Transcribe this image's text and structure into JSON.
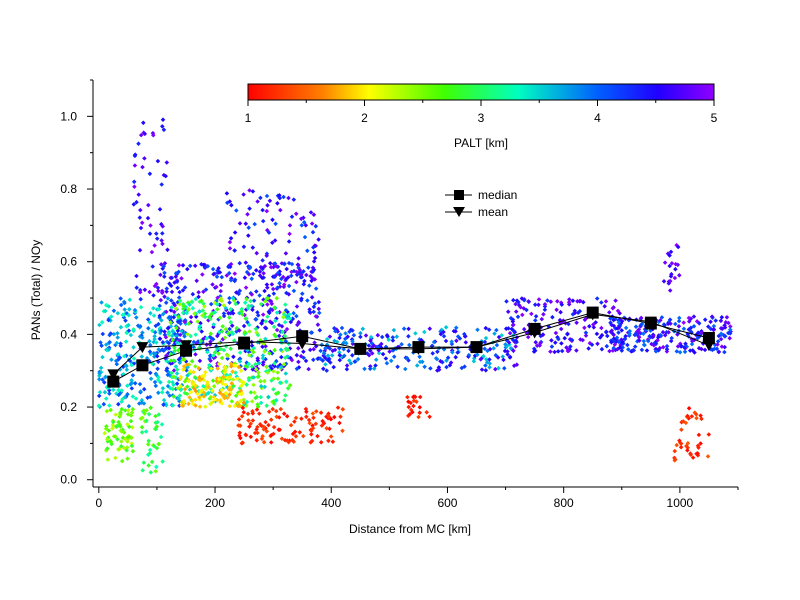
{
  "chart_data": {
    "type": "scatter",
    "title": "",
    "xlabel": "Distance from MC [km]",
    "ylabel": "PANs (Total) / NOy",
    "xlim": [
      -10,
      1100
    ],
    "ylim": [
      -0.02,
      1.1
    ],
    "xticks": [
      0,
      200,
      400,
      600,
      800,
      1000
    ],
    "yticks": [
      0.0,
      0.2,
      0.4,
      0.6,
      0.8,
      1.0
    ],
    "xtick_labels": [
      "0",
      "200",
      "400",
      "600",
      "800",
      "1000"
    ],
    "ytick_labels": [
      "0.0",
      "0.2",
      "0.4",
      "0.6",
      "0.8",
      "1.0"
    ],
    "grid": false,
    "legend": {
      "position": "upper-center",
      "entries": [
        {
          "label": "median",
          "marker": "square"
        },
        {
          "label": "mean",
          "marker": "triangle-down"
        }
      ]
    },
    "colorbar": {
      "label": "PALT [km]",
      "range": [
        1,
        5
      ],
      "ticks": [
        1,
        2,
        3,
        4,
        5
      ],
      "tick_labels": [
        "1",
        "2",
        "3",
        "4",
        "5"
      ],
      "colormap": "rainbow",
      "position": "top"
    },
    "series": [
      {
        "name": "median",
        "x": [
          25,
          75,
          150,
          250,
          350,
          450,
          550,
          650,
          750,
          850,
          950,
          1050
        ],
        "y": [
          0.27,
          0.315,
          0.355,
          0.375,
          0.395,
          0.36,
          0.365,
          0.365,
          0.415,
          0.46,
          0.43,
          0.39
        ]
      },
      {
        "name": "mean",
        "x": [
          25,
          75,
          150,
          250,
          350,
          450,
          550,
          650,
          750,
          850,
          950,
          1050
        ],
        "y": [
          0.29,
          0.365,
          0.37,
          0.38,
          0.375,
          0.36,
          0.36,
          0.365,
          0.405,
          0.455,
          0.435,
          0.37
        ]
      }
    ],
    "scatter_clusters": [
      {
        "x": [
          0,
          150
        ],
        "y": [
          0.2,
          0.5
        ],
        "alt": [
          3.2,
          4.3
        ],
        "n": 300
      },
      {
        "x": [
          10,
          60
        ],
        "y": [
          0.05,
          0.2
        ],
        "alt": [
          2.2,
          2.9
        ],
        "n": 70
      },
      {
        "x": [
          60,
          120
        ],
        "y": [
          0.5,
          1.0
        ],
        "alt": [
          4.3,
          5.0
        ],
        "n": 60
      },
      {
        "x": [
          70,
          110
        ],
        "y": [
          0.02,
          0.2
        ],
        "alt": [
          2.4,
          3.3
        ],
        "n": 40
      },
      {
        "x": [
          100,
          380
        ],
        "y": [
          0.3,
          0.6
        ],
        "alt": [
          4.0,
          5.0
        ],
        "n": 420
      },
      {
        "x": [
          120,
          330
        ],
        "y": [
          0.2,
          0.5
        ],
        "alt": [
          2.3,
          3.6
        ],
        "n": 350
      },
      {
        "x": [
          140,
          250
        ],
        "y": [
          0.2,
          0.32
        ],
        "alt": [
          1.7,
          2.2
        ],
        "n": 120
      },
      {
        "x": [
          240,
          420
        ],
        "y": [
          0.1,
          0.2
        ],
        "alt": [
          1.0,
          1.4
        ],
        "n": 110
      },
      {
        "x": [
          220,
          380
        ],
        "y": [
          0.55,
          0.8
        ],
        "alt": [
          4.0,
          5.0
        ],
        "n": 100
      },
      {
        "x": [
          380,
          720
        ],
        "y": [
          0.3,
          0.42
        ],
        "alt": [
          3.5,
          4.8
        ],
        "n": 260
      },
      {
        "x": [
          530,
          570
        ],
        "y": [
          0.17,
          0.23
        ],
        "alt": [
          1.0,
          1.3
        ],
        "n": 20
      },
      {
        "x": [
          700,
          900
        ],
        "y": [
          0.35,
          0.5
        ],
        "alt": [
          4.2,
          5.0
        ],
        "n": 180
      },
      {
        "x": [
          880,
          1090
        ],
        "y": [
          0.35,
          0.45
        ],
        "alt": [
          3.9,
          5.0
        ],
        "n": 230
      },
      {
        "x": [
          990,
          1050
        ],
        "y": [
          0.05,
          0.2
        ],
        "alt": [
          1.0,
          1.5
        ],
        "n": 40
      },
      {
        "x": [
          970,
          1000
        ],
        "y": [
          0.5,
          0.65
        ],
        "alt": [
          4.5,
          5.0
        ],
        "n": 20
      }
    ]
  }
}
